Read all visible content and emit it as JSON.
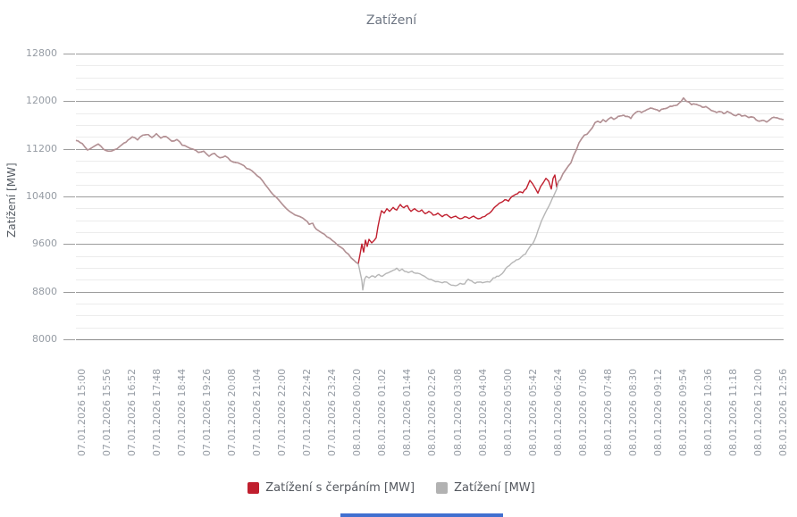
{
  "title": "Zatížení",
  "y_axis": {
    "title": "Zatížení [MW]",
    "min": 8000,
    "max": 12800,
    "major_step": 800,
    "minor_step": 200,
    "labels": [
      "12800",
      "12000",
      "11200",
      "10400",
      "9600",
      "8800",
      "8000"
    ]
  },
  "x_axis": {
    "labels": [
      "07.01.2026 15:00",
      "07.01.2026 15:56",
      "07.01.2026 16:52",
      "07.01.2026 17:48",
      "07.01.2026 18:44",
      "07.01.2026 19:26",
      "07.01.2026 20:08",
      "07.01.2026 21:04",
      "07.01.2026 22:00",
      "07.01.2026 22:42",
      "07.01.2026 23:24",
      "08.01.2026 00:20",
      "08.01.2026 01:02",
      "08.01.2026 01:44",
      "08.01.2026 02:26",
      "08.01.2026 03:08",
      "08.01.2026 04:04",
      "08.01.2026 05:00",
      "08.01.2026 05:42",
      "08.01.2026 06:24",
      "08.01.2026 07:06",
      "08.01.2026 07:48",
      "08.01.2026 08:30",
      "08.01.2026 09:12",
      "08.01.2026 09:54",
      "08.01.2026 10:36",
      "08.01.2026 11:18",
      "08.01.2026 12:00",
      "08.01.2026 12:56"
    ]
  },
  "legend": [
    {
      "label": "Zatížení s čerpáním [MW]",
      "color": "#c01f2e"
    },
    {
      "label": "Zatížení [MW]",
      "color": "#b2b2b2"
    }
  ],
  "colors": {
    "grid_major": "#9d9d9d",
    "grid_minor": "#ececec",
    "axis_line": "#8b8b8b",
    "series_pumping": "#c01f2e",
    "series_load": "#a9a9a9",
    "series_load_opacity": 0.85,
    "bottom_bar": "#4170d0"
  },
  "chart_data": {
    "type": "line",
    "title": "Zatížení",
    "xlabel": "",
    "ylabel": "Zatížení [MW]",
    "ylim": [
      8000,
      12800
    ],
    "grid": true,
    "legend_position": "bottom",
    "x_unit": "fraction of plot width (07.01.2026 15:00 -> 08.01.2026 ~12:56)",
    "jitter_mw": 13,
    "series": [
      {
        "name": "Zatížení s čerpáním [MW]",
        "color": "#c01f2e",
        "opacity": 1,
        "segments": [
          "common_before",
          "red_only",
          "common_after"
        ]
      },
      {
        "name": "Zatížení [MW]",
        "color": "#a9a9a9",
        "opacity": 0.85,
        "segments": [
          "common_before",
          "gray_only",
          "common_after"
        ]
      }
    ],
    "segments": {
      "common_before": [
        [
          0.0,
          11340
        ],
        [
          0.0088,
          11290
        ],
        [
          0.0164,
          11180
        ],
        [
          0.024,
          11230
        ],
        [
          0.0316,
          11280
        ],
        [
          0.0391,
          11190
        ],
        [
          0.0467,
          11160
        ],
        [
          0.0543,
          11185
        ],
        [
          0.0619,
          11240
        ],
        [
          0.0707,
          11310
        ],
        [
          0.0795,
          11400
        ],
        [
          0.0871,
          11350
        ],
        [
          0.0947,
          11430
        ],
        [
          0.1023,
          11440
        ],
        [
          0.1073,
          11390
        ],
        [
          0.1136,
          11455
        ],
        [
          0.1199,
          11380
        ],
        [
          0.1275,
          11405
        ],
        [
          0.1351,
          11330
        ],
        [
          0.1427,
          11355
        ],
        [
          0.1502,
          11260
        ],
        [
          0.1578,
          11230
        ],
        [
          0.1654,
          11195
        ],
        [
          0.173,
          11140
        ],
        [
          0.1805,
          11160
        ],
        [
          0.1881,
          11075
        ],
        [
          0.1957,
          11125
        ],
        [
          0.2033,
          11050
        ],
        [
          0.2108,
          11080
        ],
        [
          0.2184,
          11000
        ],
        [
          0.226,
          10970
        ],
        [
          0.2336,
          10940
        ],
        [
          0.2412,
          10870
        ],
        [
          0.2487,
          10830
        ],
        [
          0.2563,
          10745
        ],
        [
          0.2639,
          10660
        ],
        [
          0.2715,
          10540
        ],
        [
          0.279,
          10425
        ],
        [
          0.2866,
          10340
        ],
        [
          0.2942,
          10235
        ],
        [
          0.3018,
          10150
        ],
        [
          0.3093,
          10090
        ],
        [
          0.3169,
          10060
        ],
        [
          0.3245,
          10000
        ],
        [
          0.3295,
          9930
        ],
        [
          0.3346,
          9950
        ],
        [
          0.3396,
          9850
        ],
        [
          0.3472,
          9790
        ],
        [
          0.3548,
          9720
        ],
        [
          0.3623,
          9660
        ],
        [
          0.3699,
          9580
        ],
        [
          0.3775,
          9520
        ],
        [
          0.3851,
          9430
        ],
        [
          0.3926,
          9330
        ],
        [
          0.399,
          9270
        ]
      ],
      "red_only": [
        [
          0.4015,
          9430
        ],
        [
          0.404,
          9600
        ],
        [
          0.4066,
          9465
        ],
        [
          0.4091,
          9665
        ],
        [
          0.4116,
          9560
        ],
        [
          0.4141,
          9680
        ],
        [
          0.4179,
          9620
        ],
        [
          0.4217,
          9665
        ],
        [
          0.4242,
          9705
        ],
        [
          0.4268,
          9890
        ],
        [
          0.4293,
          10040
        ],
        [
          0.4318,
          10160
        ],
        [
          0.4356,
          10120
        ],
        [
          0.4394,
          10195
        ],
        [
          0.4432,
          10150
        ],
        [
          0.4482,
          10215
        ],
        [
          0.4533,
          10170
        ],
        [
          0.4583,
          10265
        ],
        [
          0.4634,
          10210
        ],
        [
          0.4684,
          10245
        ],
        [
          0.4735,
          10150
        ],
        [
          0.4785,
          10195
        ],
        [
          0.4836,
          10150
        ],
        [
          0.4886,
          10175
        ],
        [
          0.4937,
          10110
        ],
        [
          0.4987,
          10150
        ],
        [
          0.5051,
          10085
        ],
        [
          0.5114,
          10120
        ],
        [
          0.5177,
          10060
        ],
        [
          0.524,
          10095
        ],
        [
          0.5303,
          10040
        ],
        [
          0.5366,
          10070
        ],
        [
          0.5429,
          10025
        ],
        [
          0.5492,
          10060
        ],
        [
          0.5556,
          10030
        ],
        [
          0.5619,
          10070
        ],
        [
          0.5682,
          10025
        ],
        [
          0.5745,
          10055
        ],
        [
          0.5808,
          10095
        ],
        [
          0.5871,
          10150
        ],
        [
          0.5909,
          10210
        ],
        [
          0.596,
          10260
        ],
        [
          0.601,
          10300
        ],
        [
          0.6061,
          10345
        ],
        [
          0.6111,
          10320
        ],
        [
          0.6162,
          10400
        ],
        [
          0.6212,
          10435
        ],
        [
          0.6263,
          10475
        ],
        [
          0.6313,
          10460
        ],
        [
          0.6364,
          10530
        ],
        [
          0.6414,
          10670
        ],
        [
          0.6452,
          10615
        ],
        [
          0.649,
          10540
        ],
        [
          0.6528,
          10455
        ],
        [
          0.6566,
          10565
        ],
        [
          0.6604,
          10630
        ],
        [
          0.6641,
          10705
        ],
        [
          0.6679,
          10660
        ],
        [
          0.6717,
          10525
        ],
        [
          0.6742,
          10705
        ],
        [
          0.6768,
          10760
        ],
        [
          0.6793,
          10560
        ],
        [
          0.6818,
          10655
        ]
      ],
      "gray_only": [
        [
          0.4015,
          9130
        ],
        [
          0.404,
          8985
        ],
        [
          0.4053,
          8830
        ],
        [
          0.4078,
          9010
        ],
        [
          0.4104,
          9060
        ],
        [
          0.4141,
          9030
        ],
        [
          0.4179,
          9065
        ],
        [
          0.4229,
          9040
        ],
        [
          0.428,
          9090
        ],
        [
          0.4331,
          9060
        ],
        [
          0.4381,
          9105
        ],
        [
          0.4432,
          9130
        ],
        [
          0.4482,
          9160
        ],
        [
          0.4533,
          9195
        ],
        [
          0.4571,
          9150
        ],
        [
          0.4609,
          9180
        ],
        [
          0.4646,
          9140
        ],
        [
          0.4697,
          9120
        ],
        [
          0.4747,
          9145
        ],
        [
          0.4798,
          9110
        ],
        [
          0.4861,
          9100
        ],
        [
          0.4924,
          9060
        ],
        [
          0.4987,
          9010
        ],
        [
          0.5051,
          8985
        ],
        [
          0.5114,
          8970
        ],
        [
          0.5177,
          8950
        ],
        [
          0.524,
          8960
        ],
        [
          0.5303,
          8910
        ],
        [
          0.5366,
          8900
        ],
        [
          0.5429,
          8940
        ],
        [
          0.5492,
          8930
        ],
        [
          0.5543,
          9010
        ],
        [
          0.5593,
          8980
        ],
        [
          0.5644,
          8940
        ],
        [
          0.5694,
          8960
        ],
        [
          0.5745,
          8950
        ],
        [
          0.5795,
          8965
        ],
        [
          0.5846,
          8960
        ],
        [
          0.5896,
          9030
        ],
        [
          0.5947,
          9060
        ],
        [
          0.5997,
          9080
        ],
        [
          0.6048,
          9140
        ],
        [
          0.6098,
          9220
        ],
        [
          0.6149,
          9270
        ],
        [
          0.6199,
          9310
        ],
        [
          0.625,
          9340
        ],
        [
          0.6301,
          9390
        ],
        [
          0.6351,
          9430
        ],
        [
          0.6402,
          9530
        ],
        [
          0.6452,
          9600
        ],
        [
          0.6503,
          9730
        ],
        [
          0.6553,
          9905
        ],
        [
          0.6604,
          10050
        ],
        [
          0.6654,
          10175
        ],
        [
          0.6705,
          10290
        ],
        [
          0.6755,
          10420
        ],
        [
          0.6793,
          10520
        ],
        [
          0.6818,
          10655
        ]
      ],
      "common_after": [
        [
          0.6843,
          10680
        ],
        [
          0.6881,
          10780
        ],
        [
          0.6919,
          10845
        ],
        [
          0.6957,
          10910
        ],
        [
          0.6995,
          10965
        ],
        [
          0.7033,
          11090
        ],
        [
          0.7071,
          11180
        ],
        [
          0.7109,
          11300
        ],
        [
          0.7146,
          11370
        ],
        [
          0.7184,
          11430
        ],
        [
          0.7222,
          11445
        ],
        [
          0.726,
          11500
        ],
        [
          0.7298,
          11555
        ],
        [
          0.7336,
          11640
        ],
        [
          0.7374,
          11665
        ],
        [
          0.7412,
          11640
        ],
        [
          0.7449,
          11690
        ],
        [
          0.7487,
          11655
        ],
        [
          0.7525,
          11700
        ],
        [
          0.7563,
          11730
        ],
        [
          0.7601,
          11695
        ],
        [
          0.7639,
          11720
        ],
        [
          0.7689,
          11750
        ],
        [
          0.774,
          11765
        ],
        [
          0.779,
          11745
        ],
        [
          0.7841,
          11710
        ],
        [
          0.7891,
          11790
        ],
        [
          0.7942,
          11830
        ],
        [
          0.7992,
          11810
        ],
        [
          0.8043,
          11840
        ],
        [
          0.8093,
          11870
        ],
        [
          0.8144,
          11880
        ],
        [
          0.8194,
          11860
        ],
        [
          0.8245,
          11830
        ],
        [
          0.8295,
          11870
        ],
        [
          0.8346,
          11880
        ],
        [
          0.8396,
          11915
        ],
        [
          0.8447,
          11925
        ],
        [
          0.8497,
          11935
        ],
        [
          0.8548,
          11990
        ],
        [
          0.8586,
          12055
        ],
        [
          0.8624,
          12000
        ],
        [
          0.8662,
          11985
        ],
        [
          0.8699,
          11940
        ],
        [
          0.875,
          11950
        ],
        [
          0.8801,
          11930
        ],
        [
          0.8851,
          11900
        ],
        [
          0.8902,
          11910
        ],
        [
          0.8952,
          11870
        ],
        [
          0.9003,
          11835
        ],
        [
          0.9053,
          11810
        ],
        [
          0.9104,
          11825
        ],
        [
          0.9154,
          11790
        ],
        [
          0.9205,
          11830
        ],
        [
          0.9255,
          11800
        ],
        [
          0.9306,
          11760
        ],
        [
          0.9356,
          11780
        ],
        [
          0.9407,
          11750
        ],
        [
          0.9457,
          11760
        ],
        [
          0.9508,
          11725
        ],
        [
          0.9558,
          11735
        ],
        [
          0.9609,
          11690
        ],
        [
          0.9659,
          11665
        ],
        [
          0.971,
          11680
        ],
        [
          0.976,
          11650
        ],
        [
          0.9811,
          11695
        ],
        [
          0.9861,
          11730
        ],
        [
          0.9912,
          11720
        ],
        [
          0.9962,
          11700
        ],
        [
          1.0,
          11690
        ]
      ]
    }
  }
}
